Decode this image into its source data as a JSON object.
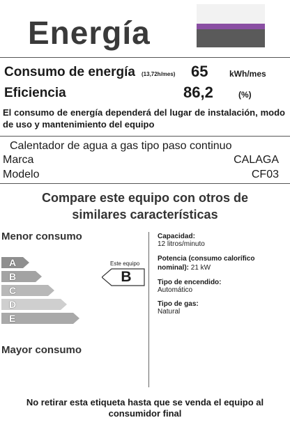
{
  "header": {
    "title": "Energía"
  },
  "flag_colors": [
    "#f2f2f2",
    "#8a4fa3",
    "#5a5a5a"
  ],
  "consumption": {
    "label": "Consumo de energía",
    "note": "(13,72h/mes)",
    "value": "65",
    "unit": "kWh/mes"
  },
  "efficiency": {
    "label": "Eficiencia",
    "value": "86,2",
    "unit": "(%)"
  },
  "note": "El consumo de energía dependerá del lugar de instalación, modo de uso y mantenimiento del equipo",
  "product": {
    "type": "Calentador de agua a gas tipo paso continuo",
    "brand_label": "Marca",
    "brand": "CALAGA",
    "model_label": "Modelo",
    "model": "CF03"
  },
  "compare": {
    "line1": "Compare este equipo con otros de",
    "line2": "similares características"
  },
  "scale": {
    "top_label": "Menor consumo",
    "bottom_label": "Mayor consumo",
    "bands": [
      {
        "letter": "A",
        "color": "#8f8f8f"
      },
      {
        "letter": "B",
        "color": "#a3a3a3"
      },
      {
        "letter": "C",
        "color": "#b8b8b8"
      },
      {
        "letter": "D",
        "color": "#cfcfcf"
      },
      {
        "letter": "E",
        "color": "#a9a9a9"
      }
    ],
    "marker_label": "Este equipo",
    "marker_class": "B"
  },
  "specs": [
    {
      "label": "Capacidad:",
      "value": "12 litros/minuto"
    },
    {
      "label": "Potencia (consumo calorífico nominal):",
      "value": "21 kW"
    },
    {
      "label": "Tipo de encendido:",
      "value": "Automático"
    },
    {
      "label": "Tipo de gas:",
      "value": "Natural"
    }
  ],
  "footer": {
    "line1": "No retirar esta etiqueta hasta que se venda el equipo al",
    "line2": "consumidor final"
  }
}
